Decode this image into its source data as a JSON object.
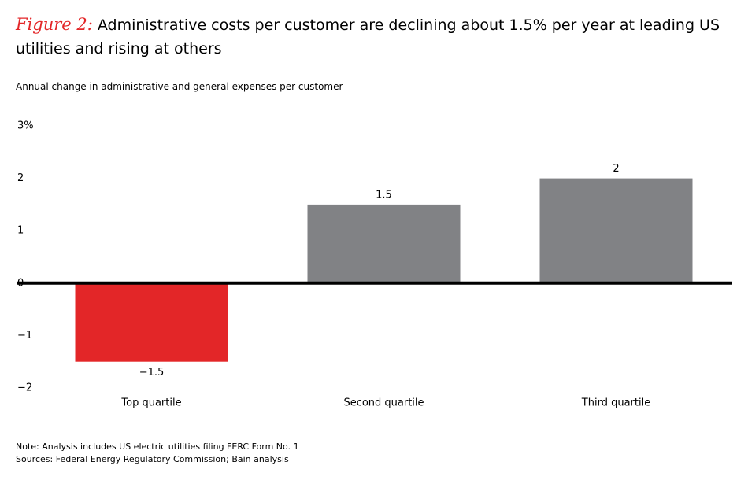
{
  "chart_data": {
    "type": "bar",
    "figure_label": "Figure 2:",
    "title": "Administrative costs per customer are declining about 1.5% per year at leading US utilities and rising at others",
    "subtitle": "Annual change in administrative and general expenses per customer",
    "categories": [
      "Top quartile",
      "Second quartile",
      "Third quartile"
    ],
    "values": [
      -1.5,
      1.5,
      2
    ],
    "value_labels": [
      "−1.5",
      "1.5",
      "2"
    ],
    "colors": [
      "#e32628",
      "#818285",
      "#818285"
    ],
    "ylim": [
      -2,
      3
    ],
    "yticks": [
      {
        "value": 3,
        "label": "3%"
      },
      2,
      1,
      0,
      {
        "value": -1,
        "label": "−1"
      },
      {
        "value": -2,
        "label": "−2"
      }
    ],
    "notes": [
      "Note: Analysis includes US electric utilities filing FERC Form No. 1",
      "Sources: Federal Energy Regulatory Commission; Bain analysis"
    ]
  }
}
